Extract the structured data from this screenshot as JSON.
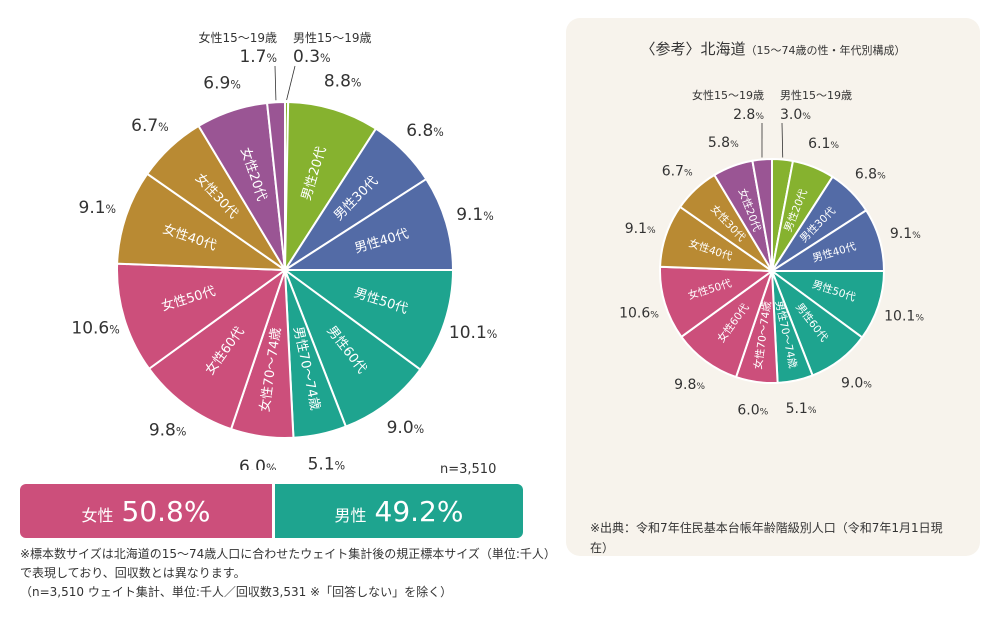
{
  "chart_data": [
    {
      "type": "pie",
      "title": "",
      "unit": "%",
      "slices": [
        {
          "name": "男性15〜19歳",
          "value": 0.3,
          "color": "#86b22f"
        },
        {
          "name": "男性20代",
          "value": 8.8,
          "color": "#86b22f"
        },
        {
          "name": "男性30代",
          "value": 6.8,
          "color": "#536ba6"
        },
        {
          "name": "男性40代",
          "value": 9.1,
          "color": "#536ba6"
        },
        {
          "name": "男性50代",
          "value": 10.1,
          "color": "#1ea48f"
        },
        {
          "name": "男性60代",
          "value": 9.0,
          "color": "#1ea48f"
        },
        {
          "name": "男性70〜74歳",
          "value": 5.1,
          "color": "#1ea48f"
        },
        {
          "name": "女性70〜74歳",
          "value": 6.0,
          "color": "#cc4f7b"
        },
        {
          "name": "女性60代",
          "value": 9.8,
          "color": "#cc4f7b"
        },
        {
          "name": "女性50代",
          "value": 10.6,
          "color": "#cc4f7b"
        },
        {
          "name": "女性40代",
          "value": 9.1,
          "color": "#b98a33"
        },
        {
          "name": "女性30代",
          "value": 6.7,
          "color": "#b98a33"
        },
        {
          "name": "女性20代",
          "value": 6.9,
          "color": "#9a5594"
        },
        {
          "name": "女性15〜19歳",
          "value": 1.7,
          "color": "#9a5594"
        }
      ]
    },
    {
      "type": "pie",
      "title": "〈参考〉北海道（15〜74歳の性・年代別構成）",
      "unit": "%",
      "slices": [
        {
          "name": "男性15〜19歳",
          "value": 3.0,
          "color": "#86b22f"
        },
        {
          "name": "男性20代",
          "value": 6.1,
          "color": "#86b22f"
        },
        {
          "name": "男性30代",
          "value": 6.8,
          "color": "#536ba6"
        },
        {
          "name": "男性40代",
          "value": 9.1,
          "color": "#536ba6"
        },
        {
          "name": "男性50代",
          "value": 10.1,
          "color": "#1ea48f"
        },
        {
          "name": "男性60代",
          "value": 9.0,
          "color": "#1ea48f"
        },
        {
          "name": "男性70〜74歳",
          "value": 5.1,
          "color": "#1ea48f"
        },
        {
          "name": "女性70〜74歳",
          "value": 6.0,
          "color": "#cc4f7b"
        },
        {
          "name": "女性60代",
          "value": 9.8,
          "color": "#cc4f7b"
        },
        {
          "name": "女性50代",
          "value": 10.6,
          "color": "#cc4f7b"
        },
        {
          "name": "女性40代",
          "value": 9.1,
          "color": "#b98a33"
        },
        {
          "name": "女性30代",
          "value": 6.7,
          "color": "#b98a33"
        },
        {
          "name": "女性20代",
          "value": 5.8,
          "color": "#9a5594"
        },
        {
          "name": "女性15〜19歳",
          "value": 2.8,
          "color": "#9a5594"
        }
      ]
    }
  ],
  "sample": "n=3,510",
  "gender_bar": {
    "female_label": "女性",
    "female_value": "50.8%",
    "female_pct": 50.8,
    "male_label": "男性",
    "male_value": "49.2%",
    "male_pct": 49.2
  },
  "notes": [
    "※標本数サイズは北海道の15〜74歳人口に合わせたウェイト集計後の規正標本サイズ（単位:千人）で表現しており、回収数とは異なります。",
    "（n=3,510 ウェイト集計、単位:千人／回収数3,531 ※「回答しない」を除く）"
  ],
  "reference": {
    "title_main": "〈参考〉北海道",
    "title_sub": "（15〜74歳の性・年代別構成）",
    "source": "※出典：令和7年住民基本台帳年齢階級別人口（令和7年1月1日現在）"
  }
}
